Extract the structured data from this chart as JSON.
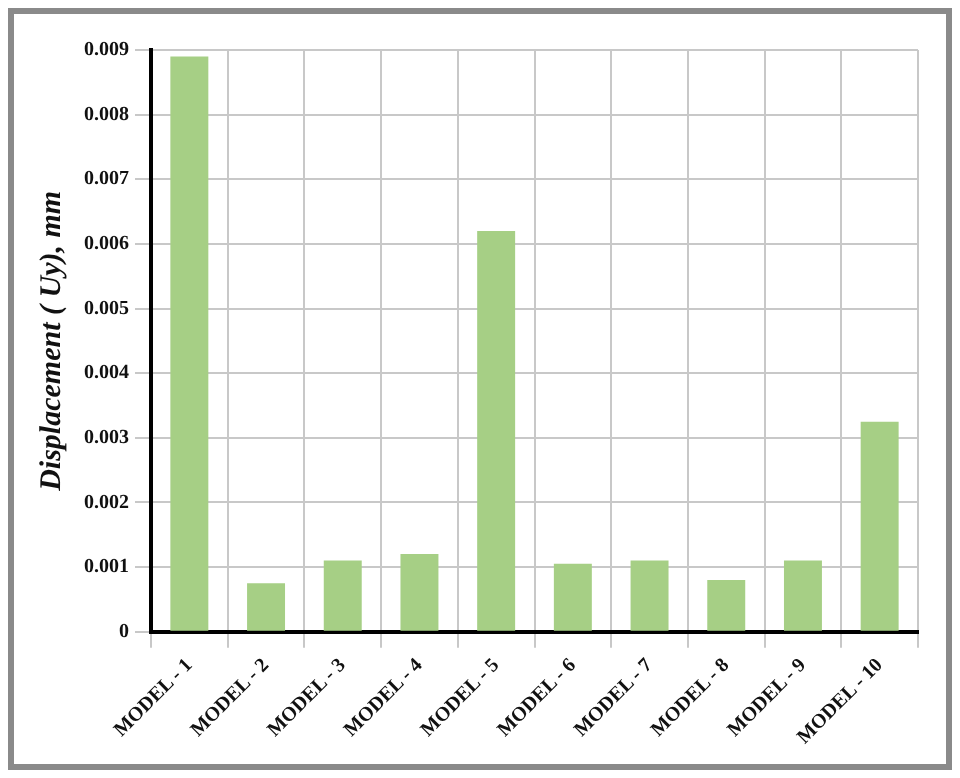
{
  "chart_data": {
    "type": "bar",
    "ylabel": "Displacement ( Uy), mm",
    "categories": [
      "MODEL - 1",
      "MODEL - 2",
      "MODEL - 3",
      "MODEL - 4",
      "MODEL - 5",
      "MODEL - 6",
      "MODEL - 7",
      "MODEL - 8",
      "MODEL - 9",
      "MODEL - 10"
    ],
    "values": [
      0.0089,
      0.00075,
      0.0011,
      0.0012,
      0.0062,
      0.00105,
      0.0011,
      0.0008,
      0.0011,
      0.00325
    ],
    "color": "#a6cf85",
    "ylim": [
      0,
      0.009
    ],
    "yticks": [
      0,
      0.001,
      0.002,
      0.003,
      0.004,
      0.005,
      0.006,
      0.007,
      0.008,
      0.009
    ],
    "grid": true,
    "legend": false
  }
}
